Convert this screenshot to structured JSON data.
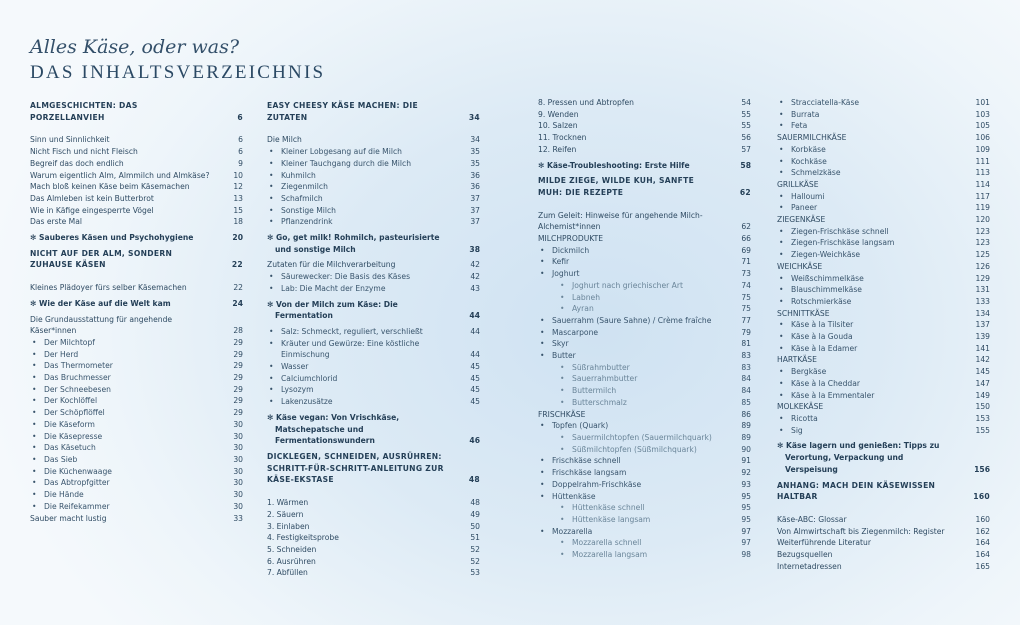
{
  "header": {
    "subtitle": "Alles Käse, oder was?",
    "title": "DAS INHALTSVERZEICHNIS"
  },
  "colors": {
    "text": "#2f4b63",
    "heading": "#254058",
    "subitem": "#6a8599",
    "background": "#dceaf5"
  },
  "bullet_icon": "•",
  "columns": [
    [
      {
        "kind": "heading",
        "text": "ALMGESCHICHTEN: DAS PORZELLANVIEH",
        "page": "6"
      },
      {
        "kind": "t",
        "text": "Sinn und Sinnlichkeit",
        "page": "6"
      },
      {
        "kind": "t",
        "text": "Nicht Fisch und nicht Fleisch",
        "page": "6"
      },
      {
        "kind": "t",
        "text": "Begreif das doch endlich",
        "page": "9"
      },
      {
        "kind": "t",
        "text": "Warum eigentlich Alm, Almmilch und Almkäse?",
        "page": "10"
      },
      {
        "kind": "t",
        "text": "Mach bloß keinen Käse beim Käsemachen",
        "page": "12"
      },
      {
        "kind": "t",
        "text": "Das Almleben ist kein Butterbrot",
        "page": "13"
      },
      {
        "kind": "t",
        "text": "Wie in Käfige eingesperrte Vögel",
        "page": "15"
      },
      {
        "kind": "t",
        "text": "Das erste Mal",
        "page": "18"
      },
      {
        "kind": "star",
        "text": "✻ Sauberes Käsen und Psychohygiene",
        "page": "20"
      },
      {
        "kind": "heading",
        "text": "NICHT AUF DER ALM, SONDERN ZUHAUSE KÄSEN",
        "page": "22"
      },
      {
        "kind": "t",
        "text": "Kleines Plädoyer fürs selber Käsemachen",
        "page": "22"
      },
      {
        "kind": "star",
        "text": "✻ Wie der Käse auf die Welt kam",
        "page": "24"
      },
      {
        "kind": "t",
        "text": "Die Grundausstattung für angehende Käser*innen",
        "page": "28"
      },
      {
        "kind": "b1",
        "text": "Der Milchtopf",
        "page": "29"
      },
      {
        "kind": "b1",
        "text": "Der Herd",
        "page": "29"
      },
      {
        "kind": "b1",
        "text": "Das Thermometer",
        "page": "29"
      },
      {
        "kind": "b1",
        "text": "Das Bruchmesser",
        "page": "29"
      },
      {
        "kind": "b1",
        "text": "Der Schneebesen",
        "page": "29"
      },
      {
        "kind": "b1",
        "text": "Der Kochlöffel",
        "page": "29"
      },
      {
        "kind": "b1",
        "text": "Der Schöpflöffel",
        "page": "29"
      },
      {
        "kind": "b1",
        "text": "Die Käseform",
        "page": "30"
      },
      {
        "kind": "b1",
        "text": "Die Käsepresse",
        "page": "30"
      },
      {
        "kind": "b1",
        "text": "Das Käsetuch",
        "page": "30"
      },
      {
        "kind": "b1",
        "text": "Das Sieb",
        "page": "30"
      },
      {
        "kind": "b1",
        "text": "Die Küchenwaage",
        "page": "30"
      },
      {
        "kind": "b1",
        "text": "Das Abtropfgitter",
        "page": "30"
      },
      {
        "kind": "b1",
        "text": "Die Hände",
        "page": "30"
      },
      {
        "kind": "b1",
        "text": "Die Reifekammer",
        "page": "30"
      },
      {
        "kind": "t",
        "text": "Sauber macht lustig",
        "page": "33"
      }
    ],
    [
      {
        "kind": "heading",
        "text": "EASY CHEESY KÄSE MACHEN: DIE ZUTATEN",
        "page": "34"
      },
      {
        "kind": "t",
        "text": "Die Milch",
        "page": "34"
      },
      {
        "kind": "b1",
        "text": "Kleiner Lobgesang auf die Milch",
        "page": "35"
      },
      {
        "kind": "b1",
        "text": "Kleiner Tauchgang durch die Milch",
        "page": "35"
      },
      {
        "kind": "b1",
        "text": "Kuhmilch",
        "page": "36"
      },
      {
        "kind": "b1",
        "text": "Ziegenmilch",
        "page": "36"
      },
      {
        "kind": "b1",
        "text": "Schafmilch",
        "page": "37"
      },
      {
        "kind": "b1",
        "text": "Sonstige Milch",
        "page": "37"
      },
      {
        "kind": "b1",
        "text": "Pflanzendrink",
        "page": "37"
      },
      {
        "kind": "star",
        "text": "✻ Go, get milk! Rohmilch, pasteurisierte und sonstige Milch",
        "page": "38"
      },
      {
        "kind": "t",
        "text": "Zutaten für die Milchverarbeitung",
        "page": "42"
      },
      {
        "kind": "b1",
        "text": "Säurewecker: Die Basis des Käses",
        "page": "42"
      },
      {
        "kind": "b1",
        "text": "Lab: Die Macht der Enzyme",
        "page": "43"
      },
      {
        "kind": "star",
        "text": "✻ Von der Milch zum Käse: Die Fermentation",
        "page": "44"
      },
      {
        "kind": "b1",
        "text": "Salz: Schmeckt, reguliert, verschließt",
        "page": "44"
      },
      {
        "kind": "b1",
        "text": "Kräuter und Gewürze: Eine köstliche Einmischung",
        "page": "44"
      },
      {
        "kind": "b1",
        "text": "Wasser",
        "page": "45"
      },
      {
        "kind": "b1",
        "text": "Calciumchlorid",
        "page": "45"
      },
      {
        "kind": "b1",
        "text": "Lysozym",
        "page": "45"
      },
      {
        "kind": "b1",
        "text": "Lakenzusätze",
        "page": "45"
      },
      {
        "kind": "star",
        "text": "✻ Käse vegan: Von Vrischkäse, Matschepatsche und Fermentationswundern",
        "page": "46"
      },
      {
        "kind": "heading",
        "text": "DICKLEGEN, SCHNEIDEN, AUSRÜHREN: SCHRITT-FÜR-SCHRITT-ANLEITUNG ZUR KÄSE-EKSTASE",
        "page": "48"
      },
      {
        "kind": "t",
        "text": "1. Wärmen",
        "page": "48"
      },
      {
        "kind": "t",
        "text": "2. Säuern",
        "page": "49"
      },
      {
        "kind": "t",
        "text": "3. Einlaben",
        "page": "50"
      },
      {
        "kind": "t",
        "text": "4. Festigkeitsprobe",
        "page": "51"
      },
      {
        "kind": "t",
        "text": "5. Schneiden",
        "page": "52"
      },
      {
        "kind": "t",
        "text": "6. Ausrühren",
        "page": "52"
      },
      {
        "kind": "t",
        "text": "7. Abfüllen",
        "page": "53"
      }
    ],
    [
      {
        "kind": "t",
        "text": "8. Pressen und Abtropfen",
        "page": "54"
      },
      {
        "kind": "t",
        "text": "9. Wenden",
        "page": "55"
      },
      {
        "kind": "t",
        "text": "10. Salzen",
        "page": "55"
      },
      {
        "kind": "t",
        "text": "11. Trocknen",
        "page": "56"
      },
      {
        "kind": "t",
        "text": "12. Reifen",
        "page": "57"
      },
      {
        "kind": "star",
        "text": "✻ Käse-Troubleshooting: Erste Hilfe",
        "page": "58"
      },
      {
        "kind": "heading",
        "text": "MILDE ZIEGE, WILDE KUH, SANFTE MUH: DIE REZEPTE",
        "page": "62"
      },
      {
        "kind": "t",
        "text": "Zum Geleit: Hinweise für angehende Milch-Alchemist*innen",
        "page": "62"
      },
      {
        "kind": "t",
        "text": "MILCHPRODUKTE",
        "page": "66"
      },
      {
        "kind": "b1",
        "text": "Dickmilch",
        "page": "69"
      },
      {
        "kind": "b1",
        "text": "Kefir",
        "page": "71"
      },
      {
        "kind": "b1",
        "text": "Joghurt",
        "page": "73"
      },
      {
        "kind": "b2",
        "text": "Joghurt nach griechischer Art",
        "page": "74"
      },
      {
        "kind": "b2",
        "text": "Labneh",
        "page": "75"
      },
      {
        "kind": "b2",
        "text": "Ayran",
        "page": "75"
      },
      {
        "kind": "b1",
        "text": "Sauerrahm (Saure Sahne) / Crème fraîche",
        "page": "77"
      },
      {
        "kind": "b1",
        "text": "Mascarpone",
        "page": "79"
      },
      {
        "kind": "b1",
        "text": "Skyr",
        "page": "81"
      },
      {
        "kind": "b1",
        "text": "Butter",
        "page": "83"
      },
      {
        "kind": "b2",
        "text": "Süßrahmbutter",
        "page": "83"
      },
      {
        "kind": "b2",
        "text": "Sauerrahmbutter",
        "page": "84"
      },
      {
        "kind": "b2",
        "text": "Buttermilch",
        "page": "84"
      },
      {
        "kind": "b2",
        "text": "Butterschmalz",
        "page": "85"
      },
      {
        "kind": "t",
        "text": "FRISCHKÄSE",
        "page": "86"
      },
      {
        "kind": "b1",
        "text": "Topfen (Quark)",
        "page": "89"
      },
      {
        "kind": "b2",
        "text": "Sauermilchtopfen (Sauermilchquark)",
        "page": "89"
      },
      {
        "kind": "b2",
        "text": "Süßmilchtopfen (Süßmilchquark)",
        "page": "90"
      },
      {
        "kind": "b1",
        "text": "Frischkäse schnell",
        "page": "91"
      },
      {
        "kind": "b1",
        "text": "Frischkäse langsam",
        "page": "92"
      },
      {
        "kind": "b1",
        "text": "Doppelrahm-Frischkäse",
        "page": "93"
      },
      {
        "kind": "b1",
        "text": "Hüttenkäse",
        "page": "95"
      },
      {
        "kind": "b2",
        "text": "Hüttenkäse schnell",
        "page": "95"
      },
      {
        "kind": "b2",
        "text": "Hüttenkäse langsam",
        "page": "95"
      },
      {
        "kind": "b1",
        "text": "Mozzarella",
        "page": "97"
      },
      {
        "kind": "b2",
        "text": "Mozzarella schnell",
        "page": "97"
      },
      {
        "kind": "b2",
        "text": "Mozzarella langsam",
        "page": "98"
      }
    ],
    [
      {
        "kind": "b1",
        "text": "Stracciatella-Käse",
        "page": "101"
      },
      {
        "kind": "b1",
        "text": "Burrata",
        "page": "103"
      },
      {
        "kind": "b1",
        "text": "Feta",
        "page": "105"
      },
      {
        "kind": "t",
        "text": "SAUERMILCHKÄSE",
        "page": "106"
      },
      {
        "kind": "b1",
        "text": "Korbkäse",
        "page": "109"
      },
      {
        "kind": "b1",
        "text": "Kochkäse",
        "page": "111"
      },
      {
        "kind": "b1",
        "text": "Schmelzkäse",
        "page": "113"
      },
      {
        "kind": "t",
        "text": "GRILLKÄSE",
        "page": "114"
      },
      {
        "kind": "b1",
        "text": "Halloumi",
        "page": "117"
      },
      {
        "kind": "b1",
        "text": "Paneer",
        "page": "119"
      },
      {
        "kind": "t",
        "text": "ZIEGENKÄSE",
        "page": "120"
      },
      {
        "kind": "b1",
        "text": "Ziegen-Frischkäse schnell",
        "page": "123"
      },
      {
        "kind": "b1",
        "text": "Ziegen-Frischkäse langsam",
        "page": "123"
      },
      {
        "kind": "b1",
        "text": "Ziegen-Weichkäse",
        "page": "125"
      },
      {
        "kind": "t",
        "text": "WEICHKÄSE",
        "page": "126"
      },
      {
        "kind": "b1",
        "text": "Weißschimmelkäse",
        "page": "129"
      },
      {
        "kind": "b1",
        "text": "Blauschimmelkäse",
        "page": "131"
      },
      {
        "kind": "b1",
        "text": "Rotschmierkäse",
        "page": "133"
      },
      {
        "kind": "t",
        "text": "SCHNITTKÄSE",
        "page": "134"
      },
      {
        "kind": "b1",
        "text": "Käse à la Tilsiter",
        "page": "137"
      },
      {
        "kind": "b1",
        "text": "Käse à la Gouda",
        "page": "139"
      },
      {
        "kind": "b1",
        "text": "Käse à la Edamer",
        "page": "141"
      },
      {
        "kind": "t",
        "text": "HARTKÄSE",
        "page": "142"
      },
      {
        "kind": "b1",
        "text": "Bergkäse",
        "page": "145"
      },
      {
        "kind": "b1",
        "text": "Käse à la Cheddar",
        "page": "147"
      },
      {
        "kind": "b1",
        "text": "Käse à la Emmentaler",
        "page": "149"
      },
      {
        "kind": "t",
        "text": "MOLKEKÄSE",
        "page": "150"
      },
      {
        "kind": "b1",
        "text": "Ricotta",
        "page": "153"
      },
      {
        "kind": "b1",
        "text": "Sig",
        "page": "155"
      },
      {
        "kind": "star",
        "text": "✻ Käse lagern und genießen: Tipps zu Verortung, Verpackung und Verspeisung",
        "page": "156"
      },
      {
        "kind": "heading",
        "text": "ANHANG: MACH DEIN KÄSEWISSEN HALTBAR",
        "page": "160"
      },
      {
        "kind": "t",
        "text": "Käse-ABC: Glossar",
        "page": "160"
      },
      {
        "kind": "t",
        "text": "Von Almwirtschaft bis Ziegenmilch: Register",
        "page": "162"
      },
      {
        "kind": "t",
        "text": "Weiterführende Literatur",
        "page": "164"
      },
      {
        "kind": "t",
        "text": "Bezugsquellen",
        "page": "164"
      },
      {
        "kind": "t",
        "text": "Internetadressen",
        "page": "165"
      }
    ]
  ]
}
